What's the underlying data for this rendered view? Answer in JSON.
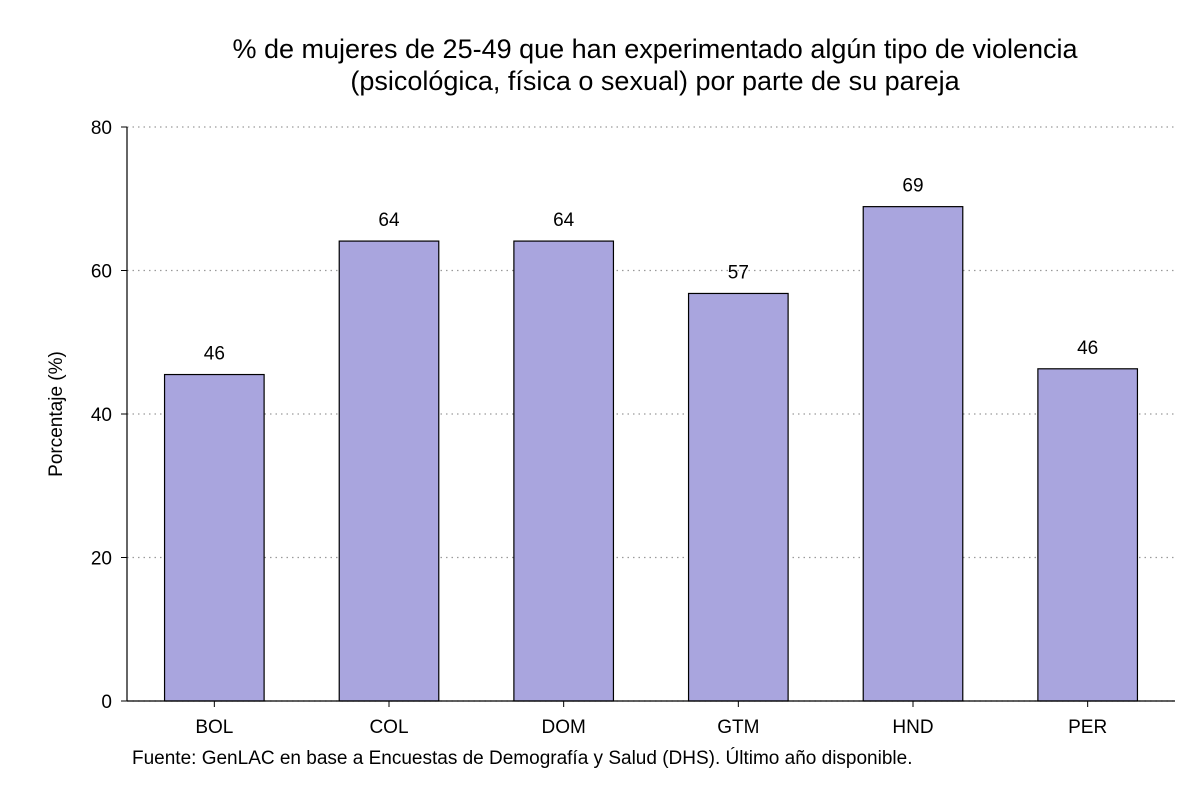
{
  "chart_data": {
    "type": "bar",
    "title_lines": [
      "% de mujeres de 25-49 que han experimentado algún tipo de violencia",
      "(psicológica, física o sexual) por parte de su pareja"
    ],
    "xlabel": "",
    "ylabel": "Porcentaje (%)",
    "ylim": [
      0,
      80
    ],
    "yticks": [
      0,
      20,
      40,
      60,
      80
    ],
    "grid": true,
    "categories": [
      "BOL",
      "COL",
      "DOM",
      "GTM",
      "HND",
      "PER"
    ],
    "values": [
      45.5,
      64.1,
      64.1,
      56.8,
      68.9,
      46.3
    ],
    "value_labels": [
      "46",
      "64",
      "64",
      "57",
      "69",
      "46"
    ],
    "bar_color": "#a9a5de",
    "bar_edge_color": "#000000",
    "source": "Fuente: GenLAC en base a Encuestas de Demografía y Salud (DHS). Último año disponible."
  }
}
